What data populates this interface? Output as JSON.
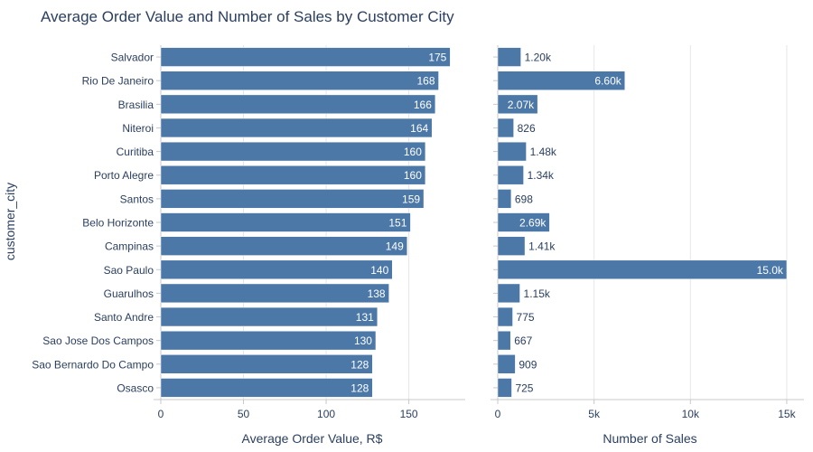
{
  "chart_data": {
    "type": "bar",
    "orientation": "horizontal",
    "title": "Average Order Value and Number of Sales by Customer City",
    "ylabel": "customer_city",
    "categories": [
      "Salvador",
      "Rio De Janeiro",
      "Brasilia",
      "Niteroi",
      "Curitiba",
      "Porto Alegre",
      "Santos",
      "Belo Horizonte",
      "Campinas",
      "Sao Paulo",
      "Guarulhos",
      "Santo Andre",
      "Sao Jose Dos Campos",
      "Sao Bernardo Do Campo",
      "Osasco"
    ],
    "panels": [
      {
        "name": "avg_order_value",
        "xlabel": "Average Order Value, R$",
        "xlim": [
          0,
          183
        ],
        "ticks": [
          0,
          50,
          100,
          150
        ],
        "tick_labels": [
          "0",
          "50",
          "100",
          "150"
        ],
        "grid": true,
        "values": [
          175,
          168,
          166,
          164,
          160,
          160,
          159,
          151,
          149,
          140,
          138,
          131,
          130,
          128,
          128
        ],
        "value_labels": [
          "175",
          "168",
          "166",
          "164",
          "160",
          "160",
          "159",
          "151",
          "149",
          "140",
          "138",
          "131",
          "130",
          "128",
          "128"
        ]
      },
      {
        "name": "number_of_sales",
        "xlabel": "Number of Sales",
        "xlim": [
          0,
          15800
        ],
        "ticks": [
          0,
          5000,
          10000,
          15000
        ],
        "tick_labels": [
          "0",
          "5k",
          "10k",
          "15k"
        ],
        "grid": true,
        "values": [
          1200,
          6600,
          2070,
          826,
          1480,
          1340,
          698,
          2690,
          1410,
          15000,
          1150,
          775,
          667,
          909,
          725
        ],
        "value_labels": [
          "1.20k",
          "6.60k",
          "2.07k",
          "826",
          "1.48k",
          "1.34k",
          "698",
          "2.69k",
          "1.41k",
          "15.0k",
          "1.15k",
          "775",
          "667",
          "909",
          "725"
        ]
      }
    ],
    "colors": {
      "bar": "#4c78a8",
      "bar_outline": "#ffffff",
      "grid": "#e6e6e6",
      "axis": "#c8c8c8",
      "text": "#2a3f5f",
      "label_inside": "#ffffff"
    }
  }
}
